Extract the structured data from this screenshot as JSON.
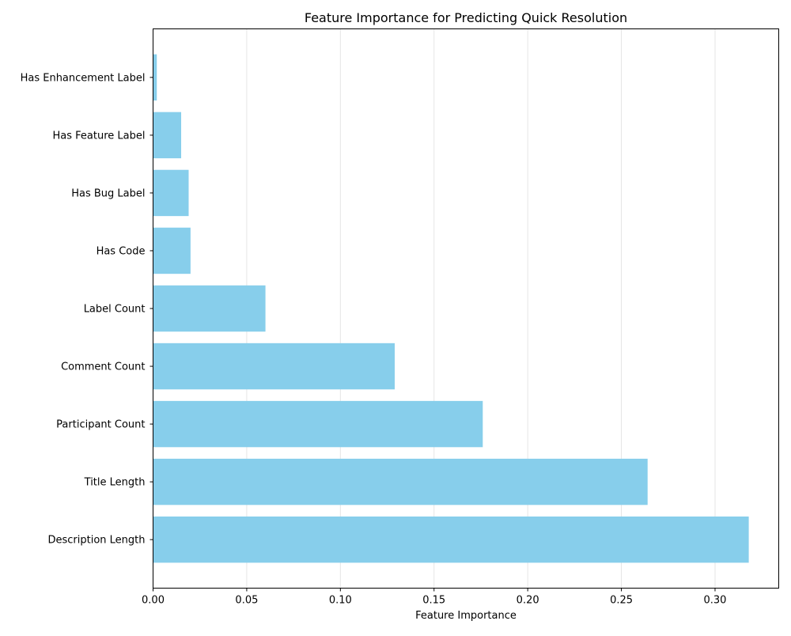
{
  "chart_data": {
    "type": "bar",
    "orientation": "horizontal",
    "title": "Feature Importance for Predicting Quick Resolution",
    "xlabel": "Feature Importance",
    "ylabel": "",
    "categories": [
      "Description Length",
      "Title Length",
      "Participant Count",
      "Comment Count",
      "Label Count",
      "Has Code",
      "Has Bug Label",
      "Has Feature Label",
      "Has Enhancement Label"
    ],
    "values": [
      0.318,
      0.264,
      0.176,
      0.129,
      0.06,
      0.02,
      0.019,
      0.015,
      0.002
    ],
    "xlim": [
      0,
      0.334
    ],
    "xticks": [
      0.0,
      0.05,
      0.1,
      0.15,
      0.2,
      0.25,
      0.3
    ],
    "xtick_labels": [
      "0.00",
      "0.05",
      "0.10",
      "0.15",
      "0.20",
      "0.25",
      "0.30"
    ],
    "grid": "vertical",
    "legend": "none",
    "bar_color": "#87ceeb",
    "grid_color": "#e5e5e5"
  }
}
